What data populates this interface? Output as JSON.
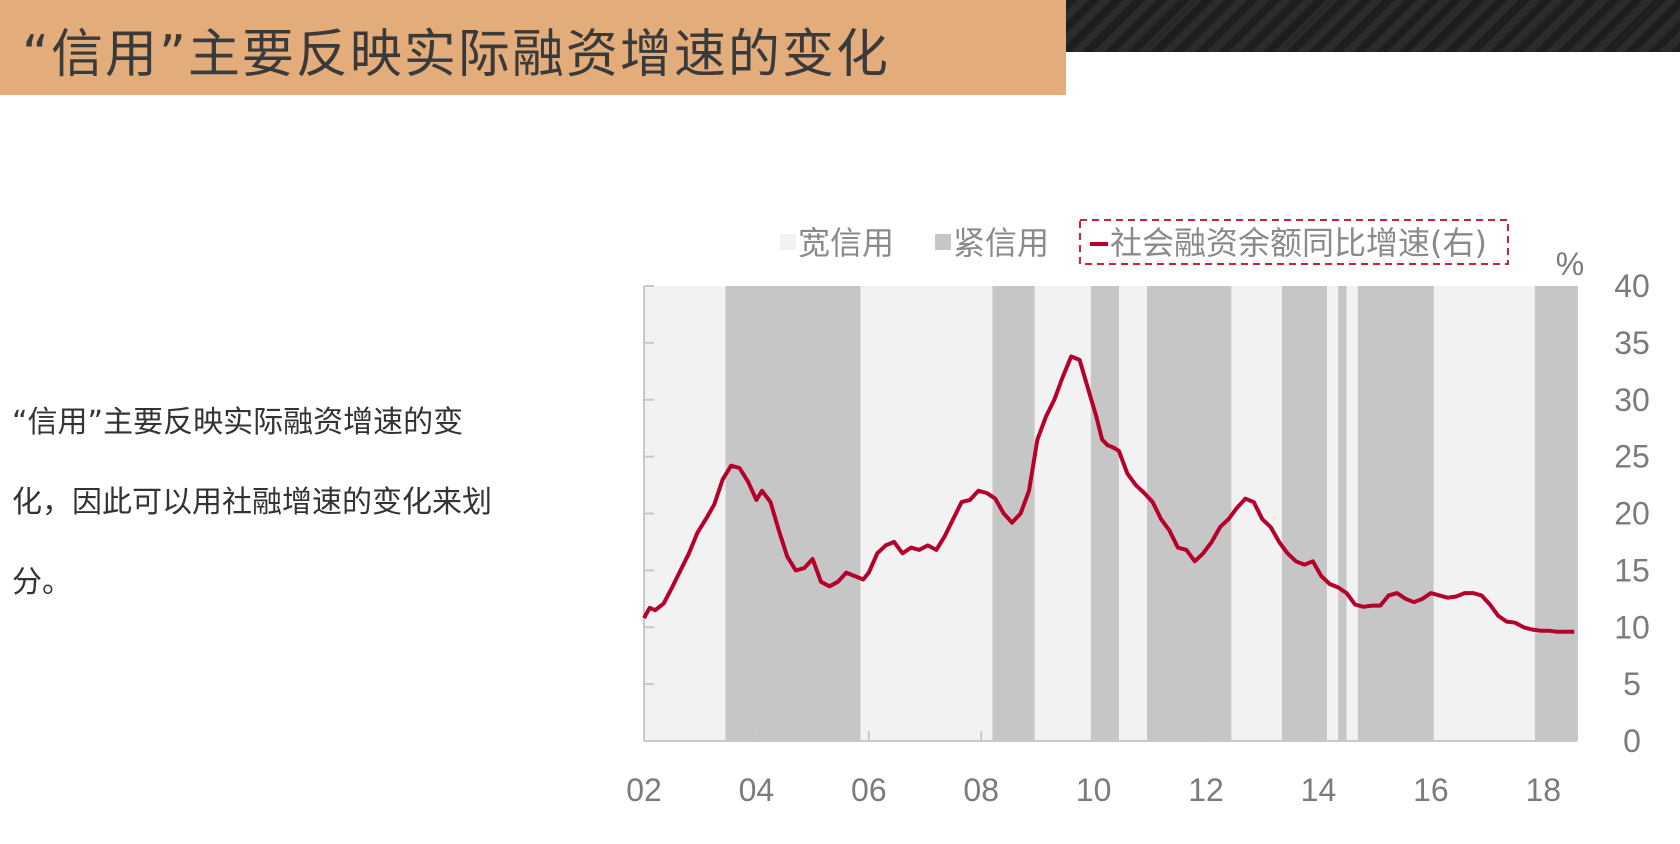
{
  "page": {
    "title": "“信用”主要反映实际融资增速的变化",
    "side_text": "“信用”主要反映实际融资增速的变化，因此可以用社融增速的变化来划分。"
  },
  "chart_data": {
    "type": "line",
    "unit_label": "%",
    "legend": {
      "loose": "宽信用",
      "tight": "紧信用",
      "series": "社会融资余额同比增速(右)"
    },
    "colors": {
      "loose": "#f2f2f2",
      "tight": "#c6c6c6",
      "line": "#b5002b"
    },
    "x_ticks": [
      "02",
      "04",
      "06",
      "08",
      "10",
      "12",
      "14",
      "16",
      "18"
    ],
    "y_ticks": [
      "0",
      "5",
      "10",
      "15",
      "20",
      "25",
      "30",
      "35",
      "40"
    ],
    "x_range": [
      2002.0,
      2018.6
    ],
    "ylim": [
      0,
      40
    ],
    "tight_periods": [
      [
        2003.45,
        2005.85
      ],
      [
        2008.2,
        2008.95
      ],
      [
        2009.95,
        2010.45
      ],
      [
        2010.95,
        2012.45
      ],
      [
        2013.35,
        2014.15
      ],
      [
        2014.35,
        2014.5
      ],
      [
        2014.7,
        2016.05
      ],
      [
        2017.85,
        2018.6
      ]
    ],
    "series": [
      {
        "name": "社会融资余额同比增速(右)",
        "x": [
          2002.0,
          2002.1,
          2002.2,
          2002.35,
          2002.5,
          2002.65,
          2002.8,
          2002.95,
          2003.1,
          2003.25,
          2003.4,
          2003.55,
          2003.7,
          2003.85,
          2004.0,
          2004.1,
          2004.25,
          2004.4,
          2004.55,
          2004.7,
          2004.85,
          2005.0,
          2005.15,
          2005.3,
          2005.45,
          2005.6,
          2005.75,
          2005.9,
          2006.0,
          2006.15,
          2006.3,
          2006.45,
          2006.6,
          2006.75,
          2006.9,
          2007.05,
          2007.2,
          2007.35,
          2007.5,
          2007.65,
          2007.8,
          2007.95,
          2008.1,
          2008.25,
          2008.4,
          2008.55,
          2008.7,
          2008.85,
          2009.0,
          2009.15,
          2009.3,
          2009.45,
          2009.6,
          2009.75,
          2009.9,
          2010.05,
          2010.15,
          2010.25,
          2010.35,
          2010.45,
          2010.6,
          2010.75,
          2010.9,
          2011.05,
          2011.2,
          2011.35,
          2011.5,
          2011.65,
          2011.8,
          2011.95,
          2012.1,
          2012.25,
          2012.4,
          2012.55,
          2012.7,
          2012.85,
          2013.0,
          2013.15,
          2013.3,
          2013.45,
          2013.6,
          2013.75,
          2013.9,
          2014.05,
          2014.2,
          2014.35,
          2014.5,
          2014.65,
          2014.8,
          2014.95,
          2015.1,
          2015.25,
          2015.4,
          2015.55,
          2015.7,
          2015.85,
          2016.0,
          2016.15,
          2016.3,
          2016.45,
          2016.6,
          2016.75,
          2016.9,
          2017.05,
          2017.2,
          2017.35,
          2017.5,
          2017.65,
          2017.8,
          2017.95,
          2018.1,
          2018.25,
          2018.4,
          2018.55
        ],
        "values": [
          10.8,
          11.7,
          11.5,
          12.1,
          13.5,
          15.0,
          16.5,
          18.3,
          19.5,
          20.8,
          23.0,
          24.2,
          24.0,
          22.8,
          21.2,
          22.0,
          21.0,
          18.5,
          16.2,
          15.0,
          15.2,
          16.0,
          14.0,
          13.6,
          14.0,
          14.8,
          14.5,
          14.2,
          14.8,
          16.5,
          17.2,
          17.5,
          16.5,
          17.0,
          16.8,
          17.2,
          16.8,
          18.0,
          19.5,
          21.0,
          21.2,
          22.0,
          21.8,
          21.3,
          20.0,
          19.2,
          20.0,
          22.0,
          26.5,
          28.5,
          30.0,
          32.0,
          33.8,
          33.5,
          31.0,
          28.5,
          26.5,
          26.0,
          25.8,
          25.5,
          23.5,
          22.5,
          21.8,
          21.0,
          19.5,
          18.5,
          17.0,
          16.8,
          15.8,
          16.5,
          17.5,
          18.8,
          19.5,
          20.5,
          21.3,
          21.0,
          19.5,
          18.8,
          17.5,
          16.5,
          15.8,
          15.5,
          15.8,
          14.5,
          13.8,
          13.5,
          13.0,
          12.0,
          11.8,
          11.9,
          11.9,
          12.8,
          13.0,
          12.5,
          12.2,
          12.5,
          13.0,
          12.8,
          12.6,
          12.7,
          13.0,
          13.0,
          12.8,
          12.0,
          11.0,
          10.5,
          10.4,
          10.0,
          9.8,
          9.7,
          9.7,
          9.6,
          9.6,
          9.6
        ]
      }
    ]
  }
}
